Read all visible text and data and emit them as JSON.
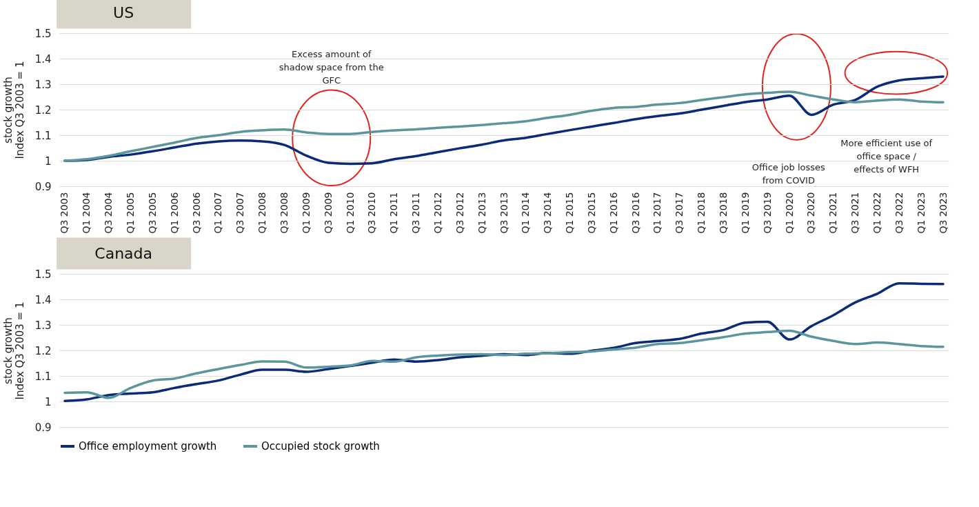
{
  "chart_data": [
    {
      "type": "line",
      "title": "US",
      "ylabel": "stock growth Index Q3 2003 = 1",
      "categories": [
        "Q3  2003",
        "Q1 2004",
        "Q3 2004",
        "Q1 2005",
        "Q3 2005",
        "Q1 2006",
        "Q3 2006",
        "Q1 2007",
        "Q3 2007",
        "Q1 2008",
        "Q3 2008",
        "Q1 2009",
        "Q3 2009",
        "Q1 2010",
        "Q3 2010",
        "Q1 2011",
        "Q3 2011",
        "Q1 2012",
        "Q3 2012",
        "Q1 2013",
        "Q3 2013",
        "Q1 2014",
        "Q3 2014",
        "Q1 2015",
        "Q3 2015",
        "Q1 2016",
        "Q3 2016",
        "Q1 2017",
        "Q3 2017",
        "Q1 2018",
        "Q3 2018",
        "Q1 2019",
        "Q3 2019",
        "Q1 2020",
        "Q3 2020",
        "Q1 2021",
        "Q3 2021",
        "Q1 2022",
        "Q3 2022",
        "Q1 2023",
        "Q3 2023"
      ],
      "series": [
        {
          "name": "Office employment growth",
          "color": "#0b2a78",
          "values": [
            1.0,
            1.003,
            1.015,
            1.024,
            1.037,
            1.052,
            1.067,
            1.076,
            1.079,
            1.076,
            1.062,
            1.02,
            0.992,
            0.988,
            0.99,
            1.006,
            1.018,
            1.034,
            1.049,
            1.063,
            1.08,
            1.09,
            1.105,
            1.12,
            1.134,
            1.148,
            1.163,
            1.175,
            1.185,
            1.2,
            1.215,
            1.23,
            1.24,
            1.255,
            1.18,
            1.22,
            1.238,
            1.29,
            1.315,
            1.323,
            1.33
          ]
        },
        {
          "name": "Occupied stock growth",
          "color": "#5b969e",
          "values": [
            1.0,
            1.006,
            1.019,
            1.037,
            1.054,
            1.071,
            1.089,
            1.1,
            1.113,
            1.119,
            1.122,
            1.111,
            1.105,
            1.105,
            1.113,
            1.119,
            1.123,
            1.129,
            1.134,
            1.14,
            1.147,
            1.155,
            1.168,
            1.18,
            1.196,
            1.207,
            1.211,
            1.22,
            1.226,
            1.238,
            1.249,
            1.26,
            1.266,
            1.27,
            1.255,
            1.24,
            1.229,
            1.236,
            1.24,
            1.232,
            1.229
          ]
        }
      ],
      "ylim": [
        0.9,
        1.5
      ],
      "yticks": [
        0.9,
        1,
        1.1,
        1.2,
        1.3,
        1.4,
        1.5
      ],
      "grid": "y",
      "legend": "bottom",
      "annotations": [
        "Excess amount of shadow space from the GFC",
        "Office job losses from COVID",
        "More efficient use of office space / effects of WFH"
      ]
    },
    {
      "type": "line",
      "title": "Canada",
      "ylabel": "stock growth Index Q3 2003 = 1",
      "categories": [
        "Q3  2003",
        "Q1 2004",
        "Q3 2004",
        "Q1 2005",
        "Q3 2005",
        "Q1 2006",
        "Q3 2006",
        "Q1 2007",
        "Q3 2007",
        "Q1 2008",
        "Q3 2008",
        "Q1 2009",
        "Q3 2009",
        "Q1 2010",
        "Q3 2010",
        "Q1 2011",
        "Q3 2011",
        "Q1 2012",
        "Q3 2012",
        "Q1 2013",
        "Q3 2013",
        "Q1 2014",
        "Q3 2014",
        "Q1 2015",
        "Q3 2015",
        "Q1 2016",
        "Q3 2016",
        "Q1 2017",
        "Q3 2017",
        "Q1 2018",
        "Q3 2018",
        "Q1 2019",
        "Q3 2019",
        "Q1 2020",
        "Q3 2020",
        "Q1 2021",
        "Q3 2021",
        "Q1 2022",
        "Q3 2022",
        "Q1 2023",
        "Q3 2023"
      ],
      "series": [
        {
          "name": "Office employment growth",
          "color": "#0b2a78",
          "values": [
            1.002,
            1.008,
            1.025,
            1.031,
            1.036,
            1.053,
            1.068,
            1.082,
            1.105,
            1.124,
            1.124,
            1.116,
            1.127,
            1.139,
            1.152,
            1.164,
            1.156,
            1.162,
            1.173,
            1.179,
            1.185,
            1.182,
            1.19,
            1.187,
            1.199,
            1.21,
            1.229,
            1.237,
            1.245,
            1.266,
            1.28,
            1.309,
            1.312,
            1.243,
            1.295,
            1.338,
            1.388,
            1.422,
            1.463,
            1.461,
            1.46
          ]
        },
        {
          "name": "Occupied stock growth",
          "color": "#5b969e",
          "values": [
            1.034,
            1.036,
            1.014,
            1.053,
            1.082,
            1.09,
            1.11,
            1.127,
            1.143,
            1.157,
            1.156,
            1.133,
            1.136,
            1.141,
            1.159,
            1.156,
            1.173,
            1.18,
            1.184,
            1.185,
            1.182,
            1.187,
            1.189,
            1.193,
            1.196,
            1.204,
            1.211,
            1.225,
            1.229,
            1.24,
            1.252,
            1.266,
            1.272,
            1.277,
            1.254,
            1.237,
            1.225,
            1.231,
            1.225,
            1.217,
            1.214
          ]
        }
      ],
      "ylim": [
        0.9,
        1.5
      ],
      "yticks": [
        0.9,
        1,
        1.1,
        1.2,
        1.3,
        1.4,
        1.5
      ],
      "grid": "y",
      "legend": "bottom",
      "tick_labels": "y"
    }
  ]
}
